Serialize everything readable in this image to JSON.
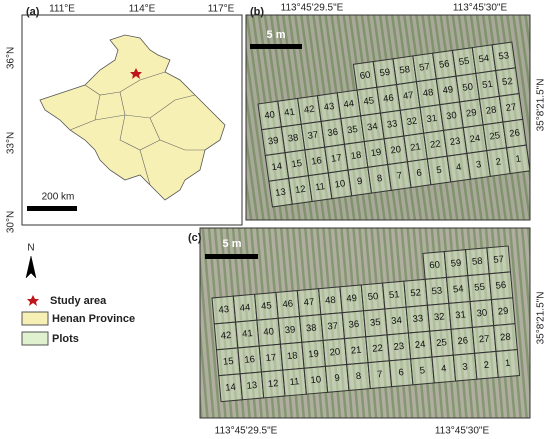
{
  "panel_a": {
    "label": "(a)",
    "lon_ticks": [
      "111°E",
      "114°E",
      "117°E"
    ],
    "lat_ticks": [
      "36°N",
      "33°N",
      "30°N"
    ],
    "scale": "200 km"
  },
  "legend": {
    "north": "N",
    "items": [
      "Study area",
      "Henan Province",
      "Plots"
    ]
  },
  "panel_b": {
    "label": "(b)",
    "lon_ticks": [
      "113°45'29.5\"E",
      "113°45'30\"E"
    ],
    "lat_tick": "35°8'21.5\"N",
    "scale": "5 m",
    "plots": [
      [
        60,
        59,
        58,
        57,
        56,
        55,
        54,
        53
      ],
      [
        40,
        41,
        42,
        43,
        44,
        45,
        46,
        47,
        48,
        49,
        50,
        51,
        52
      ],
      [
        39,
        38,
        37,
        36,
        35,
        34,
        33,
        32,
        31,
        30,
        29,
        28,
        27
      ],
      [
        14,
        15,
        16,
        17,
        18,
        19,
        20,
        21,
        22,
        23,
        24,
        25,
        26
      ],
      [
        13,
        12,
        11,
        10,
        9,
        8,
        7,
        6,
        5,
        4,
        3,
        2,
        1
      ]
    ]
  },
  "panel_c": {
    "label": "(c)",
    "lon_ticks": [
      "113°45'29.5\"E",
      "113°45'30\"E"
    ],
    "lat_tick": "35°8'21.5\"N",
    "scale": "5 m",
    "plots": [
      [
        60,
        59,
        58,
        57
      ],
      [
        43,
        44,
        45,
        46,
        47,
        48,
        49,
        50,
        51,
        52,
        53,
        54,
        55,
        56
      ],
      [
        42,
        41,
        40,
        39,
        38,
        37,
        36,
        35,
        34,
        33,
        32,
        31,
        30,
        29
      ],
      [
        15,
        16,
        17,
        18,
        19,
        20,
        21,
        22,
        23,
        24,
        25,
        26,
        27,
        28
      ],
      [
        14,
        13,
        12,
        11,
        10,
        9,
        8,
        7,
        6,
        5,
        4,
        3,
        2,
        1
      ]
    ]
  }
}
